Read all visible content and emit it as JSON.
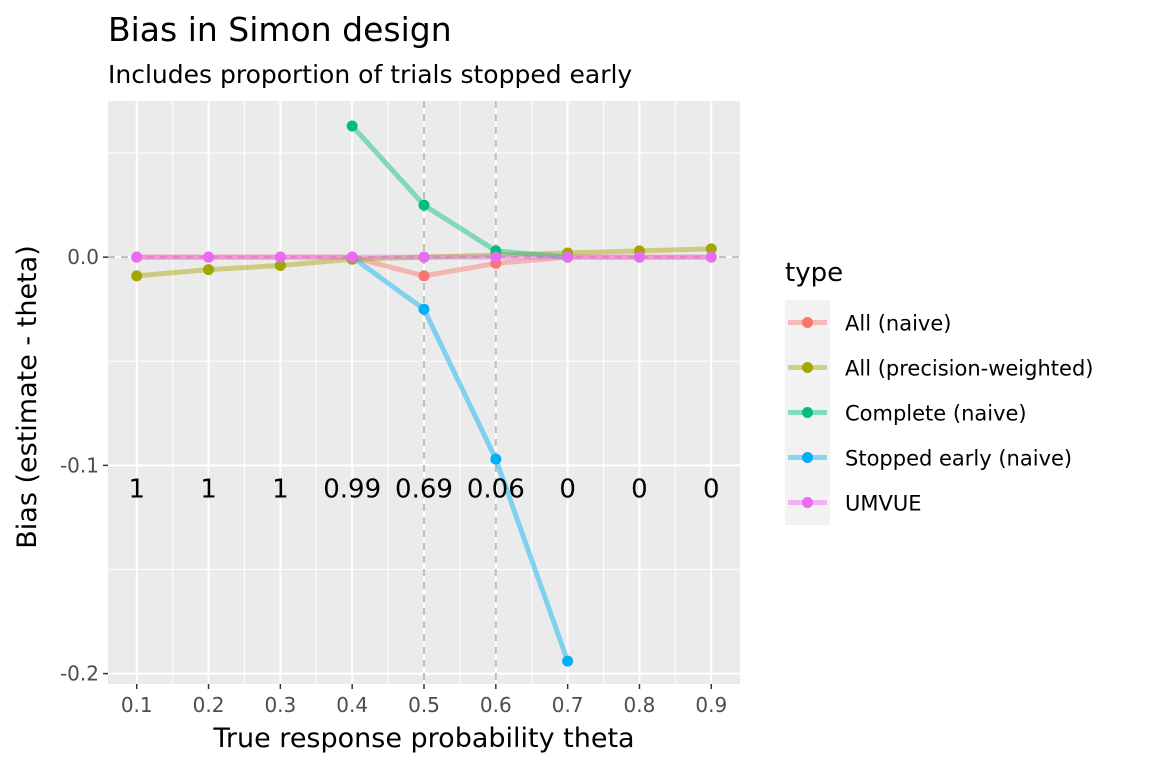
{
  "chart_data": {
    "type": "line",
    "title": "Bias in Simon design",
    "subtitle": "Includes proportion of trials stopped early",
    "xlabel": "True response probability theta",
    "ylabel": "Bias (estimate - theta)",
    "x": [
      0.1,
      0.2,
      0.3,
      0.4,
      0.5,
      0.6,
      0.7,
      0.8,
      0.9
    ],
    "x_tick_labels": [
      "0.1",
      "0.2",
      "0.3",
      "0.4",
      "0.5",
      "0.6",
      "0.7",
      "0.8",
      "0.9"
    ],
    "y_ticks": [
      0.0,
      -0.1,
      -0.2
    ],
    "y_tick_labels": [
      "0.0",
      "-0.1",
      "-0.2"
    ],
    "xlim": [
      0.06,
      0.94
    ],
    "ylim": [
      -0.205,
      0.075
    ],
    "grid": true,
    "vlines": [
      0.5,
      0.6
    ],
    "hline": 0.0,
    "legend_title": "type",
    "legend_position": "right",
    "series": [
      {
        "name": "All (naive)",
        "color": "#F8766D",
        "values": [
          0.0,
          0.0,
          0.0,
          0.0,
          -0.009,
          -0.003,
          0.0,
          0.0,
          0.0
        ]
      },
      {
        "name": "All (precision-weighted)",
        "color": "#A3A500",
        "values": [
          -0.009,
          -0.006,
          -0.004,
          -0.001,
          0.0,
          0.001,
          0.002,
          0.003,
          0.004
        ]
      },
      {
        "name": "Complete (naive)",
        "color": "#00BF7D",
        "values": [
          null,
          null,
          null,
          0.063,
          0.025,
          0.003,
          0.0,
          null,
          null
        ]
      },
      {
        "name": "Stopped early (naive)",
        "color": "#00B0F6",
        "values": [
          null,
          null,
          null,
          0.0,
          -0.025,
          -0.097,
          -0.194,
          null,
          null
        ]
      },
      {
        "name": "UMVUE",
        "color": "#E76BF3",
        "values": [
          0.0,
          0.0,
          0.0,
          0.0,
          0.0,
          0.0,
          0.0,
          0.0,
          0.0
        ]
      }
    ],
    "annotations": {
      "y": -0.111,
      "labels": [
        "1",
        "1",
        "1",
        "0.99",
        "0.69",
        "0.06",
        "0",
        "0",
        "0"
      ]
    }
  }
}
